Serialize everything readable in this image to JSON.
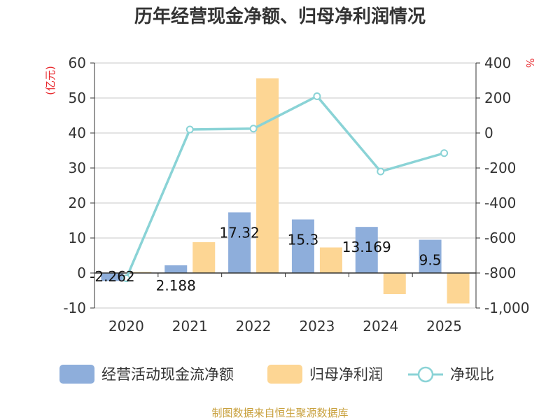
{
  "chart_data": {
    "type": "bar",
    "title": "历年经营现金净额、归母净利润情况",
    "categories": [
      "2020",
      "2021",
      "2022",
      "2023",
      "2024",
      "2025"
    ],
    "y_left": {
      "unit": "(亿元)",
      "ylim": [
        -10,
        60
      ],
      "ticks": [
        -10,
        0,
        10,
        20,
        30,
        40,
        50,
        60
      ],
      "tick_labels": [
        "-10",
        "0",
        "10",
        "20",
        "30",
        "40",
        "50",
        "60"
      ]
    },
    "y_right": {
      "unit": "%",
      "ylim": [
        -1000,
        400
      ],
      "ticks": [
        -1000,
        -800,
        -600,
        -400,
        -200,
        0,
        200,
        400
      ],
      "tick_labels": [
        "-1,000",
        "-800",
        "-600",
        "-400",
        "-200",
        "0",
        "200",
        "400"
      ]
    },
    "series": [
      {
        "name": "经营活动现金流净额",
        "kind": "bar",
        "axis": "left",
        "color": "#8eaedb",
        "values": [
          -2.262,
          2.188,
          17.32,
          15.3,
          13.169,
          9.5
        ],
        "labels": [
          "-2.262",
          "2.188",
          "17.32",
          "15.3",
          "13.169",
          "9.5"
        ]
      },
      {
        "name": "归母净利润",
        "kind": "bar",
        "axis": "left",
        "color": "#fdd694",
        "values": [
          0.3,
          8.8,
          55.6,
          7.3,
          -6.0,
          -8.7
        ]
      },
      {
        "name": "净现比",
        "kind": "line",
        "axis": "right",
        "color": "#8ad3d6",
        "values": [
          -830,
          20,
          25,
          210,
          -220,
          -115
        ]
      }
    ],
    "grid": true,
    "legend_position": "bottom"
  },
  "source_text": "制图数据来自恒生聚源数据库"
}
